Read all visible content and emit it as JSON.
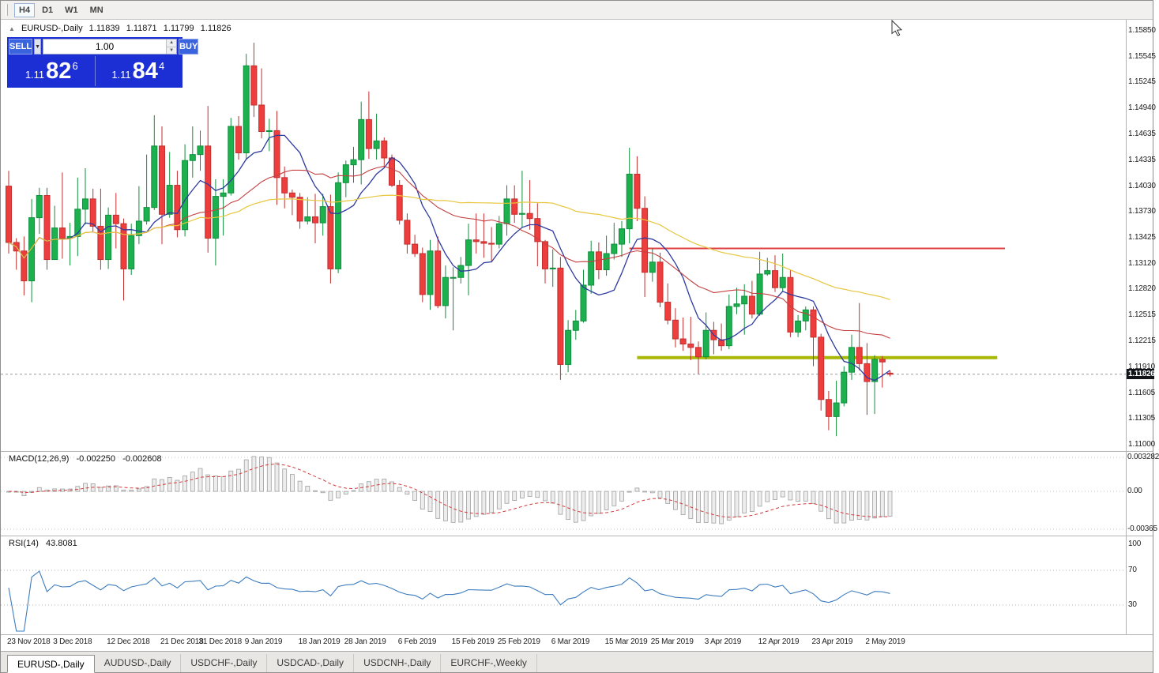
{
  "toolbar": {
    "timeframes": [
      {
        "label": "H4",
        "active": true
      },
      {
        "label": "D1",
        "active": false
      },
      {
        "label": "W1",
        "active": false
      },
      {
        "label": "MN",
        "active": false
      }
    ]
  },
  "header": {
    "symbol_title": "EURUSD-,Daily",
    "open": "1.11839",
    "high": "1.11871",
    "low": "1.11799",
    "close": "1.11826"
  },
  "icons": {
    "collapse_trade_panel": "▲",
    "volume_dropdown": "▼",
    "spinner_up": "▲",
    "spinner_down": "▼"
  },
  "trade_panel": {
    "sell_label": "SELL",
    "buy_label": "BUY",
    "volume": "1.00",
    "sell_price_prefix": "1.11",
    "sell_price_big": "82",
    "sell_price_sup": "6",
    "buy_price_prefix": "1.11",
    "buy_price_big": "84",
    "buy_price_sup": "4"
  },
  "tabs": [
    {
      "label": "EURUSD-,Daily",
      "active": true
    },
    {
      "label": "AUDUSD-,Daily",
      "active": false
    },
    {
      "label": "USDCHF-,Daily",
      "active": false
    },
    {
      "label": "USDCAD-,Daily",
      "active": false
    },
    {
      "label": "USDCNH-,Daily",
      "active": false
    },
    {
      "label": "EURCHF-,Weekly",
      "active": false
    }
  ],
  "colors": {
    "candle_up": "#1db04e",
    "candle_up_border": "#0f8f3c",
    "candle_down": "#ee3d3d",
    "candle_down_border": "#c22f2f",
    "macd_signal": "#d23b3b",
    "macd_histogram": "#ededed",
    "macd_histogram_border": "#9f9f9f",
    "rsi_line": "#3d7dbf",
    "trade_panel_bg": "#1b2fd4",
    "trade_button_bg": "#3a63de",
    "price_line": "#9a9a9a",
    "resistance": "#e14040",
    "support": "#a9b804"
  },
  "chart_data": {
    "type": "candlestick",
    "symbol": "EURUSD-",
    "timeframe": "Daily",
    "current_price": 1.11826,
    "y_axis": {
      "labels": [
        "1.15850",
        "1.15545",
        "1.15245",
        "1.14940",
        "1.14635",
        "1.14335",
        "1.14030",
        "1.13730",
        "1.13425",
        "1.13120",
        "1.12820",
        "1.12515",
        "1.12215",
        "1.11910",
        "1.11605",
        "1.11305",
        "1.11000"
      ]
    },
    "x_axis_ticks": [
      {
        "index": 0,
        "label": "23 Nov 2018"
      },
      {
        "index": 6,
        "label": "3 Dec 2018"
      },
      {
        "index": 13,
        "label": "12 Dec 2018"
      },
      {
        "index": 20,
        "label": "21 Dec 2018"
      },
      {
        "index": 25,
        "label": "31 Dec 2018"
      },
      {
        "index": 31,
        "label": "9 Jan 2019"
      },
      {
        "index": 38,
        "label": "18 Jan 2019"
      },
      {
        "index": 44,
        "label": "28 Jan 2019"
      },
      {
        "index": 51,
        "label": "6 Feb 2019"
      },
      {
        "index": 58,
        "label": "15 Feb 2019"
      },
      {
        "index": 64,
        "label": "25 Feb 2019"
      },
      {
        "index": 71,
        "label": "6 Mar 2019"
      },
      {
        "index": 78,
        "label": "15 Mar 2019"
      },
      {
        "index": 84,
        "label": "25 Mar 2019"
      },
      {
        "index": 91,
        "label": "3 Apr 2019"
      },
      {
        "index": 98,
        "label": "12 Apr 2019"
      },
      {
        "index": 105,
        "label": "23 Apr 2019"
      },
      {
        "index": 112,
        "label": "2 May 2019"
      }
    ],
    "candles": [
      [
        1.1403,
        1.1421,
        1.1324,
        1.1337
      ],
      [
        1.1337,
        1.1342,
        1.1305,
        1.1327
      ],
      [
        1.1327,
        1.1344,
        1.1275,
        1.1292
      ],
      [
        1.1292,
        1.1388,
        1.1267,
        1.1366
      ],
      [
        1.1366,
        1.1401,
        1.1347,
        1.1392
      ],
      [
        1.1392,
        1.1401,
        1.1305,
        1.1317
      ],
      [
        1.1317,
        1.138,
        1.1317,
        1.1354
      ],
      [
        1.1354,
        1.1419,
        1.1318,
        1.1342
      ],
      [
        1.1342,
        1.136,
        1.131,
        1.1344
      ],
      [
        1.1344,
        1.1413,
        1.1321,
        1.1376
      ],
      [
        1.1376,
        1.1424,
        1.1358,
        1.1388
      ],
      [
        1.1388,
        1.14,
        1.135,
        1.1356
      ],
      [
        1.1356,
        1.14,
        1.1305,
        1.1317
      ],
      [
        1.1317,
        1.1378,
        1.1306,
        1.1369
      ],
      [
        1.1369,
        1.1395,
        1.133,
        1.1359
      ],
      [
        1.1359,
        1.1365,
        1.1269,
        1.1306
      ],
      [
        1.1306,
        1.1359,
        1.1299,
        1.1345
      ],
      [
        1.1345,
        1.1403,
        1.1335,
        1.1362
      ],
      [
        1.1362,
        1.144,
        1.1358,
        1.1378
      ],
      [
        1.1378,
        1.1486,
        1.1375,
        1.145
      ],
      [
        1.145,
        1.1473,
        1.1335,
        1.137
      ],
      [
        1.137,
        1.1443,
        1.1366,
        1.1404
      ],
      [
        1.1404,
        1.1421,
        1.1343,
        1.1352
      ],
      [
        1.1352,
        1.1452,
        1.1344,
        1.1433
      ],
      [
        1.1433,
        1.1473,
        1.1413,
        1.144
      ],
      [
        1.144,
        1.1468,
        1.1421,
        1.145
      ],
      [
        1.145,
        1.1497,
        1.1325,
        1.1342
      ],
      [
        1.1342,
        1.1411,
        1.131,
        1.1391
      ],
      [
        1.1391,
        1.1411,
        1.1345,
        1.1395
      ],
      [
        1.1395,
        1.1483,
        1.1392,
        1.1473
      ],
      [
        1.1473,
        1.1485,
        1.1434,
        1.1442
      ],
      [
        1.1442,
        1.1558,
        1.1434,
        1.1544
      ],
      [
        1.1544,
        1.1571,
        1.1484,
        1.1498
      ],
      [
        1.1498,
        1.1541,
        1.1459,
        1.1467
      ],
      [
        1.1467,
        1.1482,
        1.1444,
        1.1468
      ],
      [
        1.1468,
        1.1491,
        1.1381,
        1.1413
      ],
      [
        1.1413,
        1.1426,
        1.1377,
        1.1395
      ],
      [
        1.1395,
        1.1399,
        1.1369,
        1.139
      ],
      [
        1.139,
        1.1395,
        1.1353,
        1.1362
      ],
      [
        1.1362,
        1.139,
        1.1358,
        1.1367
      ],
      [
        1.1367,
        1.1394,
        1.1336,
        1.136
      ],
      [
        1.136,
        1.1394,
        1.1345,
        1.1379
      ],
      [
        1.1379,
        1.1393,
        1.1289,
        1.1306
      ],
      [
        1.1306,
        1.1419,
        1.1301,
        1.1407
      ],
      [
        1.1407,
        1.1433,
        1.139,
        1.1428
      ],
      [
        1.1428,
        1.1449,
        1.1407,
        1.1434
      ],
      [
        1.1434,
        1.1502,
        1.1405,
        1.1481
      ],
      [
        1.1481,
        1.1514,
        1.1435,
        1.1447
      ],
      [
        1.1447,
        1.1488,
        1.1434,
        1.1456
      ],
      [
        1.1456,
        1.146,
        1.1425,
        1.1436
      ],
      [
        1.1436,
        1.144,
        1.1402,
        1.1404
      ],
      [
        1.1404,
        1.141,
        1.1358,
        1.1363
      ],
      [
        1.1363,
        1.1371,
        1.1324,
        1.1335
      ],
      [
        1.1335,
        1.1346,
        1.132,
        1.1324
      ],
      [
        1.1324,
        1.1331,
        1.1267,
        1.1276
      ],
      [
        1.1276,
        1.134,
        1.1258,
        1.1327
      ],
      [
        1.1327,
        1.1344,
        1.126,
        1.1263
      ],
      [
        1.1263,
        1.131,
        1.1248,
        1.1296
      ],
      [
        1.1296,
        1.1308,
        1.1234,
        1.1296
      ],
      [
        1.1296,
        1.132,
        1.1289,
        1.131
      ],
      [
        1.131,
        1.1359,
        1.1275,
        1.134
      ],
      [
        1.134,
        1.1371,
        1.1324,
        1.1338
      ],
      [
        1.1338,
        1.1371,
        1.1319,
        1.1336
      ],
      [
        1.1336,
        1.1355,
        1.1315,
        1.1335
      ],
      [
        1.1335,
        1.1368,
        1.133,
        1.1359
      ],
      [
        1.1359,
        1.1404,
        1.1345,
        1.1388
      ],
      [
        1.1388,
        1.1404,
        1.136,
        1.137
      ],
      [
        1.137,
        1.1421,
        1.1355,
        1.1371
      ],
      [
        1.1371,
        1.141,
        1.1352,
        1.1365
      ],
      [
        1.1365,
        1.1383,
        1.1309,
        1.1338
      ],
      [
        1.1338,
        1.134,
        1.1289,
        1.1306
      ],
      [
        1.1306,
        1.1329,
        1.1285,
        1.1307
      ],
      [
        1.1307,
        1.132,
        1.1176,
        1.1194
      ],
      [
        1.1194,
        1.1246,
        1.1185,
        1.1234
      ],
      [
        1.1234,
        1.1258,
        1.1223,
        1.1245
      ],
      [
        1.1245,
        1.1305,
        1.1243,
        1.1287
      ],
      [
        1.1287,
        1.1339,
        1.1277,
        1.1326
      ],
      [
        1.1326,
        1.1337,
        1.1294,
        1.1305
      ],
      [
        1.1305,
        1.1345,
        1.1298,
        1.1324
      ],
      [
        1.1324,
        1.136,
        1.1317,
        1.1335
      ],
      [
        1.1335,
        1.1362,
        1.132,
        1.1353
      ],
      [
        1.1353,
        1.1448,
        1.1336,
        1.1417
      ],
      [
        1.1417,
        1.1438,
        1.1362,
        1.1377
      ],
      [
        1.1377,
        1.1391,
        1.1273,
        1.1302
      ],
      [
        1.1302,
        1.133,
        1.1291,
        1.1314
      ],
      [
        1.1314,
        1.1325,
        1.1261,
        1.1267
      ],
      [
        1.1267,
        1.1289,
        1.1241,
        1.1246
      ],
      [
        1.1246,
        1.126,
        1.1214,
        1.1224
      ],
      [
        1.1224,
        1.1249,
        1.121,
        1.1218
      ],
      [
        1.1218,
        1.125,
        1.1199,
        1.1214
      ],
      [
        1.1214,
        1.1221,
        1.1183,
        1.1203
      ],
      [
        1.1203,
        1.1255,
        1.12,
        1.1234
      ],
      [
        1.1234,
        1.1244,
        1.1206,
        1.1223
      ],
      [
        1.1223,
        1.1242,
        1.121,
        1.1216
      ],
      [
        1.1216,
        1.1276,
        1.1212,
        1.1262
      ],
      [
        1.1262,
        1.1284,
        1.1253,
        1.1265
      ],
      [
        1.1265,
        1.1288,
        1.1229,
        1.1274
      ],
      [
        1.1274,
        1.1292,
        1.1248,
        1.1253
      ],
      [
        1.1253,
        1.1326,
        1.1251,
        1.13
      ],
      [
        1.13,
        1.1319,
        1.1298,
        1.1304
      ],
      [
        1.1304,
        1.1322,
        1.1279,
        1.1284
      ],
      [
        1.1284,
        1.1324,
        1.128,
        1.1296
      ],
      [
        1.1296,
        1.1305,
        1.1226,
        1.1232
      ],
      [
        1.1232,
        1.1252,
        1.1226,
        1.1245
      ],
      [
        1.1245,
        1.1262,
        1.1234,
        1.1258
      ],
      [
        1.1258,
        1.1262,
        1.1192,
        1.1226
      ],
      [
        1.1226,
        1.123,
        1.114,
        1.1153
      ],
      [
        1.1153,
        1.1163,
        1.1117,
        1.1133
      ],
      [
        1.1133,
        1.1175,
        1.111,
        1.1149
      ],
      [
        1.1149,
        1.1192,
        1.1145,
        1.1185
      ],
      [
        1.1185,
        1.1229,
        1.1176,
        1.1214
      ],
      [
        1.1214,
        1.1266,
        1.1187,
        1.1195
      ],
      [
        1.1195,
        1.1219,
        1.1135,
        1.1174
      ],
      [
        1.1174,
        1.1205,
        1.1136,
        1.12
      ],
      [
        1.12,
        1.1204,
        1.1167,
        1.1197
      ],
      [
        1.11839,
        1.11871,
        1.11799,
        1.11826
      ]
    ],
    "moving_averages": [
      {
        "name": "ma-fast-line",
        "period": 8,
        "color": "#2e3aa0",
        "width": 1.3
      },
      {
        "name": "ma-mid-line",
        "period": 21,
        "color": "#c44040",
        "width": 1.1
      },
      {
        "name": "ma-slow-line",
        "period": 55,
        "color": "#e7c63d",
        "width": 1.2
      }
    ],
    "hlines": [
      {
        "name": "resistance-line",
        "price": 1.133,
        "color": "#e14040",
        "width": 2,
        "from_index": 81,
        "to_index": 130
      },
      {
        "name": "support-line",
        "price": 1.1202,
        "color": "#a9b804",
        "width": 4,
        "from_index": 82,
        "to_index": 129
      }
    ],
    "indicators": [
      {
        "name": "MACD",
        "params": [
          12,
          26,
          9
        ],
        "label": "MACD(12,26,9)",
        "value_text": "-0.002250",
        "signal_text": "-0.002608",
        "scale_labels": [
          "0.003282",
          "0.00",
          "-0.00365"
        ]
      },
      {
        "name": "RSI",
        "params": [
          14
        ],
        "label": "RSI(14)",
        "value_text": "43.8081",
        "levels": [
          70,
          30
        ],
        "scale_labels": [
          "100",
          "70",
          "30"
        ]
      }
    ]
  }
}
